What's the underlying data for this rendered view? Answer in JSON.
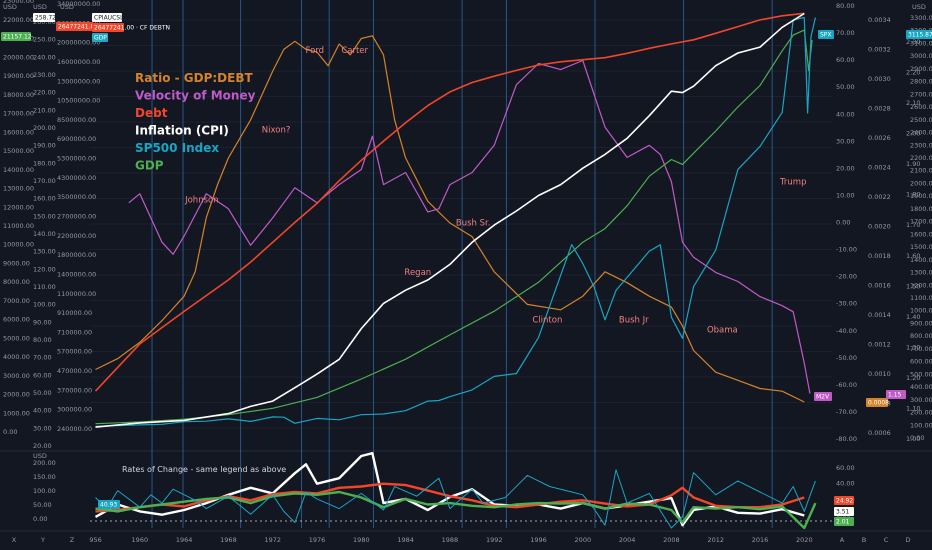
{
  "chart_data": {
    "type": "line",
    "title": "",
    "legend": [
      {
        "name": "Ratio - GDP:DEBT",
        "color": "#d4832a"
      },
      {
        "name": "Velocity of Money",
        "color": "#bf5bc7"
      },
      {
        "name": "Debt",
        "color": "#f2462a"
      },
      {
        "name": "Inflation (CPI)",
        "color": "#ffffff"
      },
      {
        "name": "SP500 Index",
        "color": "#18a5c4"
      },
      {
        "name": "GDP",
        "color": "#4caf50"
      }
    ],
    "x_ticks": [
      "956",
      "1960",
      "1964",
      "1968",
      "1972",
      "1976",
      "1980",
      "1984",
      "1988",
      "1992",
      "1996",
      "2000",
      "2004",
      "2008",
      "2012",
      "2016",
      "2020"
    ],
    "x_range": [
      1955.5,
      2022.5
    ],
    "president_lines": [
      1961.1,
      1963.9,
      1969.1,
      1974.6,
      1977.1,
      1981.1,
      1989.1,
      1993.1,
      2001.1,
      2009.1,
      2017.1
    ],
    "presidents": [
      {
        "name": "Johnson",
        "year": 1965.6,
        "y": 1800
      },
      {
        "name": "Nixon?",
        "year": 1972.3,
        "y": 2350
      },
      {
        "name": "Ford",
        "year": 1975.8,
        "y": 2970
      },
      {
        "name": "Carter",
        "year": 1979.4,
        "y": 2970
      },
      {
        "name": "Regan",
        "year": 1985.1,
        "y": 1230
      },
      {
        "name": "Bush Sr.",
        "year": 1990.1,
        "y": 1620
      },
      {
        "name": "Clinton",
        "year": 1996.8,
        "y": 860
      },
      {
        "name": "Bush Jr",
        "year": 2004.6,
        "y": 860
      },
      {
        "name": "Obama",
        "year": 2012.6,
        "y": 780
      },
      {
        "name": "Trump",
        "year": 2019.0,
        "y": 1940
      }
    ],
    "axes": {
      "left1": {
        "unit": "USD",
        "ticks": [
          "23000.00",
          "22000.00",
          "21000.00",
          "20000.00",
          "19000.00",
          "18000.00",
          "17000.00",
          "16000.00",
          "15000.00",
          "14000.00",
          "13000.00",
          "12000.00",
          "11000.00",
          "10000.00",
          "9000.00",
          "8000.00",
          "7000.00",
          "6000.00",
          "5000.00",
          "4000.00",
          "3000.00",
          "2000.00",
          "1000.00",
          "0.00"
        ],
        "range": [
          0,
          23000
        ]
      },
      "left2": {
        "unit": "USD",
        "ticks": [
          "260.00",
          "250.00",
          "240.00",
          "230.00",
          "220.00",
          "210.00",
          "200.00",
          "190.00",
          "180.00",
          "170.00",
          "160.00",
          "150.00",
          "140.00",
          "130.00",
          "120.00",
          "110.00",
          "100.00",
          "90.00",
          "80.00",
          "70.00",
          "60.00",
          "50.00",
          "40.00",
          "30.00",
          "20.00"
        ],
        "range": [
          20,
          260
        ]
      },
      "left3": {
        "unit": "USD",
        "ticks": [
          "34000000.00",
          "26000000.00",
          "20000000.00",
          "16000000.00",
          "13000000.00",
          "10500000.00",
          "8500000.00",
          "6900000.00",
          "5300000.00",
          "4300000.00",
          "3500000.00",
          "2700000.00",
          "2200000.00",
          "1800000.00",
          "1400000.00",
          "1100000.00",
          "910000.00",
          "710000.00",
          "570000.00",
          "470000.00",
          "370000.00",
          "300000.00",
          "240000.00"
        ]
      },
      "right1": {
        "ticks": [
          "80.00",
          "70.00",
          "60.00",
          "50.00",
          "40.00",
          "30.00",
          "20.00",
          "10.00",
          "0.00",
          "-10.00",
          "-20.00",
          "-30.00",
          "-40.00",
          "-50.00",
          "-60.00",
          "-70.00",
          "-80.00"
        ],
        "range": [
          -80,
          80
        ]
      },
      "right2": {
        "ticks": [
          "0.0034",
          "0.0032",
          "0.0030",
          "0.0028",
          "0.0026",
          "0.0024",
          "0.0022",
          "0.0020",
          "0.0018",
          "0.0016",
          "0.0014",
          "0.0012",
          "0.0010",
          "0.0008",
          "0.0006"
        ]
      },
      "right3": {
        "ticks": [
          "2.30",
          "2.20",
          "2.10",
          "2.00",
          "1.90",
          "1.80",
          "1.70",
          "1.60",
          "1.50",
          "1.40",
          "1.30",
          "1.20",
          "1.10",
          "1.00"
        ],
        "range": [
          0.93,
          2.38
        ]
      },
      "right4": {
        "unit": "USD",
        "ticks": [
          "3300.00",
          "3200.00",
          "3100.00",
          "3000.00",
          "2900.00",
          "2800.00",
          "2700.00",
          "2600.00",
          "2500.00",
          "2400.00",
          "2300.00",
          "2200.00",
          "2100.00",
          "2000.00",
          "1900.00",
          "1800.00",
          "1700.00",
          "1600.00",
          "1500.00",
          "1400.00",
          "1300.00",
          "1200.00",
          "1100.00",
          "1000.00",
          "900.00",
          "800.00",
          "700.00",
          "600.00",
          "500.00",
          "400.00",
          "300.00",
          "200.00",
          "100.00",
          "0.00"
        ],
        "range": [
          0,
          3340
        ]
      }
    },
    "series": [
      {
        "name": "Ratio - GDP:DEBT",
        "color": "#d4832a",
        "x": [
          1956,
          1958,
          1960,
          1962,
          1964,
          1965,
          1966,
          1967,
          1968,
          1970,
          1972,
          1973,
          1974,
          1975,
          1976,
          1977,
          1978,
          1979,
          1980,
          1981,
          1982,
          1983,
          1984,
          1986,
          1988,
          1990,
          1992,
          1995,
          1998,
          2000,
          2002,
          2004,
          2006,
          2008,
          2009,
          2010,
          2012,
          2014,
          2016,
          2018,
          2020
        ],
        "y": [
          -54,
          -50,
          -44,
          -36,
          -27,
          -18,
          2,
          14,
          24,
          38,
          56,
          64,
          67,
          64,
          63,
          58,
          66,
          62,
          68,
          69,
          62,
          38,
          24,
          8,
          0,
          -5,
          -18,
          -30,
          -32,
          -27,
          -18,
          -22,
          -27,
          -31,
          -38,
          -47,
          -55,
          -58,
          -61,
          -62,
          -66
        ]
      },
      {
        "name": "Velocity of Money",
        "color": "#bf5bc7",
        "x": [
          1959,
          1960,
          1962,
          1963,
          1964,
          1966,
          1968,
          1970,
          1972,
          1974,
          1976,
          1978,
          1980,
          1981,
          1982,
          1984,
          1986,
          1987,
          1988,
          1990,
          1992,
          1994,
          1996,
          1998,
          2000,
          2002,
          2004,
          2006,
          2007,
          2008,
          2009,
          2010,
          2012,
          2014,
          2016,
          2018,
          2019,
          2020,
          2020.5
        ],
        "y": [
          1.73,
          1.76,
          1.6,
          1.56,
          1.62,
          1.76,
          1.71,
          1.59,
          1.68,
          1.78,
          1.73,
          1.79,
          1.84,
          1.95,
          1.79,
          1.83,
          1.7,
          1.71,
          1.79,
          1.83,
          1.92,
          2.12,
          2.19,
          2.17,
          2.2,
          1.98,
          1.88,
          1.92,
          1.89,
          1.8,
          1.6,
          1.55,
          1.5,
          1.47,
          1.42,
          1.39,
          1.37,
          1.2,
          1.1
        ]
      },
      {
        "name": "Debt",
        "color": "#f2462a",
        "x": [
          1956,
          1960,
          1964,
          1968,
          1970,
          1972,
          1974,
          1976,
          1978,
          1980,
          1982,
          1984,
          1986,
          1988,
          1990,
          1992,
          1994,
          1996,
          1998,
          2000,
          2002,
          2004,
          2006,
          2008,
          2010,
          2012,
          2014,
          2016,
          2018,
          2020
        ],
        "y": [
          50,
          90,
          135,
          200,
          250,
          320,
          410,
          520,
          690,
          890,
          1130,
          1420,
          1760,
          2090,
          2350,
          2540,
          2730,
          2920,
          3040,
          3120,
          3200,
          3380,
          3600,
          3800,
          4000,
          4340,
          4720,
          5130,
          5400,
          5570
        ]
      },
      {
        "name": "Inflation (CPI)",
        "color": "#ffffff",
        "x": [
          1956,
          1960,
          1964,
          1968,
          1970,
          1972,
          1974,
          1976,
          1978,
          1980,
          1982,
          1984,
          1986,
          1988,
          1990,
          1992,
          1994,
          1996,
          1998,
          2000,
          2002,
          2004,
          2006,
          2008,
          2009,
          2010,
          2012,
          2014,
          2016,
          2018,
          2020
        ],
        "y": [
          27.2,
          29.6,
          31.0,
          34.8,
          38.8,
          41.8,
          49.3,
          56.9,
          65.2,
          82.4,
          96.5,
          103.9,
          109.6,
          118.3,
          130.7,
          140.3,
          148.2,
          156.9,
          163.0,
          172.2,
          179.9,
          188.9,
          201.6,
          215.3,
          214.5,
          218.1,
          229.6,
          236.7,
          240.0,
          251.1,
          258.8
        ]
      },
      {
        "name": "SP500 Index",
        "color": "#18a5c4",
        "x": [
          1956,
          1960,
          1962,
          1964,
          1966,
          1968,
          1970,
          1972,
          1973,
          1974,
          1976,
          1978,
          1980,
          1982,
          1984,
          1986,
          1987,
          1988,
          1990,
          1992,
          1994,
          1996,
          1998,
          1999,
          2000,
          2001,
          2002,
          2003,
          2004,
          2006,
          2007,
          2008,
          2009,
          2010,
          2012,
          2014,
          2016,
          2018,
          2019,
          2020,
          2020.3,
          2020.6,
          2021
        ],
        "y": [
          45,
          56,
          60,
          81,
          85,
          103,
          83,
          118,
          116,
          68,
          107,
          96,
          136,
          141,
          167,
          242,
          247,
          277,
          330,
          436,
          459,
          740,
          1229,
          1469,
          1320,
          1140,
          880,
          1110,
          1212,
          1418,
          1468,
          900,
          735,
          1140,
          1426,
          2059,
          2239,
          2506,
          3231,
          3250,
          2500,
          3100,
          3250
        ]
      },
      {
        "name": "GDP",
        "color": "#4caf50",
        "x": [
          1956,
          1960,
          1964,
          1968,
          1972,
          1976,
          1980,
          1984,
          1988,
          1992,
          1996,
          2000,
          2002,
          2004,
          2006,
          2008,
          2009,
          2010,
          2012,
          2014,
          2016,
          2018,
          2019,
          2020,
          2020.4,
          2020.7
        ],
        "y": [
          450,
          540,
          690,
          940,
          1280,
          1870,
          2860,
          3930,
          5240,
          6520,
          8080,
          10250,
          10980,
          12210,
          13810,
          14710,
          14450,
          15050,
          16250,
          17550,
          18710,
          20580,
          21430,
          21700,
          19500,
          21157
        ]
      }
    ],
    "roc_series": [
      {
        "name": "Inflation (CPI)",
        "color": "#ffffff",
        "x": [
          1956,
          1958,
          1960,
          1962,
          1964,
          1966,
          1968,
          1970,
          1972,
          1974,
          1975,
          1976,
          1978,
          1980,
          1981,
          1982,
          1984,
          1986,
          1988,
          1990,
          1992,
          1994,
          1996,
          1998,
          2000,
          2002,
          2004,
          2006,
          2008,
          2009,
          2010,
          2012,
          2014,
          2016,
          2018,
          2020
        ],
        "y": [
          10,
          55,
          30,
          18,
          35,
          60,
          90,
          115,
          95,
          168,
          200,
          130,
          150,
          230,
          240,
          60,
          75,
          35,
          82,
          110,
          55,
          50,
          55,
          40,
          60,
          40,
          52,
          65,
          78,
          -20,
          35,
          48,
          25,
          22,
          38,
          15
        ]
      },
      {
        "name": "Debt",
        "color": "#f2462a",
        "x": [
          1956,
          1958,
          1960,
          1962,
          1964,
          1966,
          1968,
          1970,
          1972,
          1974,
          1976,
          1978,
          1980,
          1982,
          1984,
          1986,
          1988,
          1990,
          1992,
          1994,
          1996,
          1998,
          2000,
          2002,
          2004,
          2006,
          2008,
          2009,
          2010,
          2012,
          2014,
          2016,
          2018,
          2020
        ],
        "y": [
          30,
          35,
          45,
          55,
          48,
          70,
          85,
          70,
          92,
          100,
          95,
          115,
          120,
          130,
          125,
          105,
          85,
          70,
          50,
          45,
          55,
          65,
          70,
          58,
          48,
          55,
          88,
          115,
          80,
          50,
          45,
          45,
          55,
          80
        ]
      },
      {
        "name": "GDP",
        "color": "#4caf50",
        "x": [
          1956,
          1958,
          1960,
          1962,
          1964,
          1966,
          1968,
          1970,
          1972,
          1974,
          1976,
          1978,
          1980,
          1982,
          1984,
          1986,
          1988,
          1990,
          1992,
          1994,
          1996,
          1998,
          2000,
          2002,
          2004,
          2006,
          2008,
          2009,
          2010,
          2012,
          2014,
          2016,
          2018,
          2020,
          2021
        ],
        "y": [
          40,
          30,
          45,
          55,
          65,
          75,
          80,
          60,
          85,
          95,
          90,
          100,
          80,
          45,
          75,
          55,
          60,
          50,
          45,
          55,
          60,
          58,
          60,
          40,
          58,
          55,
          35,
          -10,
          45,
          40,
          45,
          38,
          48,
          -30,
          60
        ]
      },
      {
        "name": "SP500 Index",
        "color": "#18a5c4",
        "x": [
          1956,
          1957,
          1958,
          1960,
          1961,
          1962,
          1963,
          1965,
          1966,
          1968,
          1970,
          1972,
          1973,
          1974,
          1975,
          1976,
          1978,
          1980,
          1982,
          1983,
          1985,
          1987,
          1988,
          1990,
          1991,
          1993,
          1995,
          1997,
          1999,
          2000,
          2001,
          2002,
          2003,
          2004,
          2006,
          2008,
          2009,
          2010,
          2012,
          2014,
          2016,
          2018,
          2019,
          2020,
          2021
        ],
        "y": [
          80,
          40,
          105,
          45,
          90,
          60,
          110,
          70,
          40,
          85,
          20,
          90,
          30,
          -10,
          100,
          75,
          40,
          95,
          35,
          120,
          85,
          150,
          40,
          110,
          60,
          80,
          160,
          120,
          100,
          90,
          40,
          -20,
          180,
          60,
          95,
          -30,
          10,
          170,
          90,
          140,
          100,
          60,
          120,
          30,
          140
        ]
      }
    ],
    "roc_axis_left": {
      "ticks": [
        "200.00",
        "150.00",
        "100.00",
        "50.00",
        "0.00"
      ],
      "range": [
        -30,
        230
      ]
    },
    "roc_axis_right": {
      "ticks": [
        "60.00",
        "40.00",
        "20.00",
        "0.00"
      ]
    },
    "roc_title": "Rates of Change - same legend as above",
    "top_tags": [
      {
        "text": "CPIAUCSL",
        "bg": "#ffffff",
        "fg": "#131722"
      },
      {
        "text": "26477241.00 · CF DEBTN",
        "bg": "#f2462a",
        "fg": "#ffffff"
      },
      {
        "text": "GDP",
        "bg": "#1ea8c6",
        "fg": "#ffffff"
      }
    ],
    "price_tags": {
      "left_top": "258.72",
      "left_gdp": "21157.12",
      "left_top2": "26477241.00",
      "right_spx": "SPX",
      "right_m2v": "M2V",
      "right_ratio": "0.0008",
      "right_vel": "1.15",
      "right_sp_val": "3115.87",
      "roc_left": "40.93",
      "roc_debt": "24.92",
      "roc_cpi": "3.51",
      "roc_gdp": "2.01"
    },
    "bottom_letters": [
      "X",
      "Y",
      "Z"
    ],
    "bottom_right_letters": [
      "A",
      "B",
      "C",
      "D"
    ],
    "units": {
      "usd": "USD"
    }
  }
}
